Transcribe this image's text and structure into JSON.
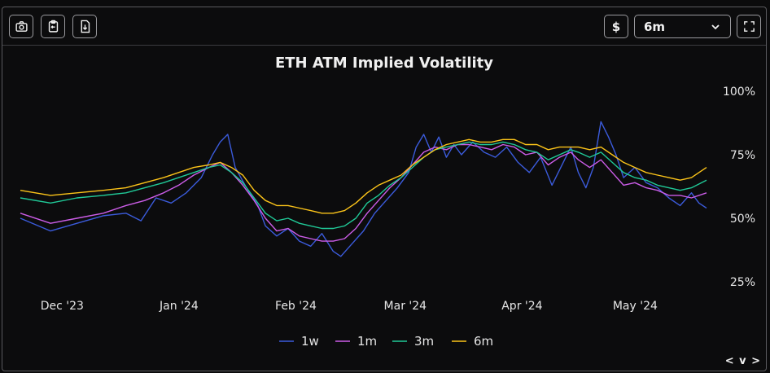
{
  "toolbar": {
    "screenshot_icon": "camera-icon",
    "clipboard_icon": "clipboard-copy-icon",
    "download_icon": "file-download-icon",
    "currency_label": "$",
    "range_value": "6m",
    "fullscreen_icon": "expand-icon"
  },
  "nav_label": "< v >",
  "chart_data": {
    "type": "line",
    "title": "ETH ATM Implied Volatility",
    "xlabel": "",
    "ylabel": "",
    "x_start": "2023-11-21",
    "x_end": "2024-05-21",
    "x_ticks": [
      {
        "label": "Dec '23",
        "date": "2023-12-01"
      },
      {
        "label": "Jan '24",
        "date": "2024-01-01"
      },
      {
        "label": "Feb '24",
        "date": "2024-02-01"
      },
      {
        "label": "Mar '24",
        "date": "2024-03-01"
      },
      {
        "label": "Apr '24",
        "date": "2024-04-01"
      },
      {
        "label": "May '24",
        "date": "2024-05-01"
      }
    ],
    "y_ticks": [
      "25%",
      "50%",
      "75%",
      "100%"
    ],
    "ylim": [
      25,
      100
    ],
    "y_axis_side": "right",
    "legend_placement": "bottom-center",
    "grid": false,
    "series": [
      {
        "name": "1w",
        "color": "#3b5bdb",
        "values": [
          [
            0,
            50
          ],
          [
            8,
            45
          ],
          [
            15,
            48
          ],
          [
            22,
            51
          ],
          [
            28,
            52
          ],
          [
            32,
            49
          ],
          [
            36,
            58
          ],
          [
            40,
            56
          ],
          [
            44,
            60
          ],
          [
            48,
            66
          ],
          [
            51,
            75
          ],
          [
            53,
            80
          ],
          [
            55,
            83
          ],
          [
            57,
            70
          ],
          [
            60,
            62
          ],
          [
            63,
            55
          ],
          [
            65,
            47
          ],
          [
            68,
            43
          ],
          [
            71,
            46
          ],
          [
            74,
            41
          ],
          [
            77,
            39
          ],
          [
            80,
            44
          ],
          [
            83,
            37
          ],
          [
            85,
            35
          ],
          [
            88,
            40
          ],
          [
            91,
            45
          ],
          [
            94,
            52
          ],
          [
            97,
            57
          ],
          [
            100,
            62
          ],
          [
            103,
            68
          ],
          [
            105,
            78
          ],
          [
            107,
            83
          ],
          [
            109,
            76
          ],
          [
            111,
            82
          ],
          [
            113,
            74
          ],
          [
            115,
            79
          ],
          [
            117,
            75
          ],
          [
            120,
            80
          ],
          [
            123,
            76
          ],
          [
            126,
            74
          ],
          [
            129,
            78
          ],
          [
            132,
            72
          ],
          [
            135,
            68
          ],
          [
            138,
            74
          ],
          [
            141,
            63
          ],
          [
            144,
            72
          ],
          [
            146,
            78
          ],
          [
            148,
            68
          ],
          [
            150,
            62
          ],
          [
            152,
            70
          ],
          [
            154,
            88
          ],
          [
            156,
            82
          ],
          [
            158,
            75
          ],
          [
            160,
            66
          ],
          [
            163,
            70
          ],
          [
            166,
            64
          ],
          [
            169,
            62
          ],
          [
            172,
            58
          ],
          [
            175,
            55
          ],
          [
            178,
            60
          ],
          [
            180,
            56
          ],
          [
            182,
            54
          ]
        ]
      },
      {
        "name": "1m",
        "color": "#cc5de8",
        "values": [
          [
            0,
            52
          ],
          [
            8,
            48
          ],
          [
            15,
            50
          ],
          [
            22,
            52
          ],
          [
            28,
            55
          ],
          [
            33,
            57
          ],
          [
            38,
            60
          ],
          [
            42,
            63
          ],
          [
            46,
            67
          ],
          [
            50,
            70
          ],
          [
            53,
            72
          ],
          [
            56,
            68
          ],
          [
            59,
            63
          ],
          [
            62,
            57
          ],
          [
            65,
            50
          ],
          [
            68,
            45
          ],
          [
            71,
            46
          ],
          [
            74,
            43
          ],
          [
            77,
            42
          ],
          [
            80,
            41
          ],
          [
            83,
            41
          ],
          [
            86,
            42
          ],
          [
            89,
            46
          ],
          [
            92,
            52
          ],
          [
            95,
            57
          ],
          [
            98,
            62
          ],
          [
            101,
            66
          ],
          [
            104,
            71
          ],
          [
            107,
            76
          ],
          [
            110,
            78
          ],
          [
            113,
            77
          ],
          [
            116,
            79
          ],
          [
            119,
            79
          ],
          [
            122,
            78
          ],
          [
            125,
            77
          ],
          [
            128,
            79
          ],
          [
            131,
            78
          ],
          [
            134,
            75
          ],
          [
            137,
            76
          ],
          [
            140,
            71
          ],
          [
            143,
            74
          ],
          [
            146,
            76
          ],
          [
            148,
            73
          ],
          [
            151,
            70
          ],
          [
            154,
            73
          ],
          [
            157,
            68
          ],
          [
            160,
            63
          ],
          [
            163,
            64
          ],
          [
            166,
            62
          ],
          [
            169,
            61
          ],
          [
            172,
            59
          ],
          [
            175,
            59
          ],
          [
            178,
            58
          ],
          [
            182,
            60
          ]
        ]
      },
      {
        "name": "3m",
        "color": "#20c997",
        "values": [
          [
            0,
            58
          ],
          [
            8,
            56
          ],
          [
            15,
            58
          ],
          [
            22,
            59
          ],
          [
            28,
            60
          ],
          [
            33,
            62
          ],
          [
            38,
            64
          ],
          [
            42,
            66
          ],
          [
            46,
            68
          ],
          [
            50,
            70
          ],
          [
            53,
            71
          ],
          [
            56,
            68
          ],
          [
            59,
            64
          ],
          [
            62,
            58
          ],
          [
            65,
            52
          ],
          [
            68,
            49
          ],
          [
            71,
            50
          ],
          [
            74,
            48
          ],
          [
            77,
            47
          ],
          [
            80,
            46
          ],
          [
            83,
            46
          ],
          [
            86,
            47
          ],
          [
            89,
            50
          ],
          [
            92,
            56
          ],
          [
            95,
            59
          ],
          [
            98,
            63
          ],
          [
            101,
            66
          ],
          [
            104,
            70
          ],
          [
            107,
            74
          ],
          [
            110,
            77
          ],
          [
            113,
            78
          ],
          [
            116,
            79
          ],
          [
            119,
            80
          ],
          [
            122,
            79
          ],
          [
            125,
            79
          ],
          [
            128,
            80
          ],
          [
            131,
            79
          ],
          [
            134,
            77
          ],
          [
            137,
            76
          ],
          [
            140,
            73
          ],
          [
            143,
            75
          ],
          [
            146,
            77
          ],
          [
            148,
            76
          ],
          [
            151,
            74
          ],
          [
            154,
            76
          ],
          [
            157,
            72
          ],
          [
            160,
            68
          ],
          [
            163,
            66
          ],
          [
            166,
            65
          ],
          [
            169,
            63
          ],
          [
            172,
            62
          ],
          [
            175,
            61
          ],
          [
            178,
            62
          ],
          [
            182,
            65
          ]
        ]
      },
      {
        "name": "6m",
        "color": "#fcc419",
        "values": [
          [
            0,
            61
          ],
          [
            8,
            59
          ],
          [
            15,
            60
          ],
          [
            22,
            61
          ],
          [
            28,
            62
          ],
          [
            33,
            64
          ],
          [
            38,
            66
          ],
          [
            42,
            68
          ],
          [
            46,
            70
          ],
          [
            50,
            71
          ],
          [
            53,
            72
          ],
          [
            56,
            70
          ],
          [
            59,
            67
          ],
          [
            62,
            61
          ],
          [
            65,
            57
          ],
          [
            68,
            55
          ],
          [
            71,
            55
          ],
          [
            74,
            54
          ],
          [
            77,
            53
          ],
          [
            80,
            52
          ],
          [
            83,
            52
          ],
          [
            86,
            53
          ],
          [
            89,
            56
          ],
          [
            92,
            60
          ],
          [
            95,
            63
          ],
          [
            98,
            65
          ],
          [
            101,
            67
          ],
          [
            104,
            71
          ],
          [
            107,
            74
          ],
          [
            110,
            77
          ],
          [
            113,
            79
          ],
          [
            116,
            80
          ],
          [
            119,
            81
          ],
          [
            122,
            80
          ],
          [
            125,
            80
          ],
          [
            128,
            81
          ],
          [
            131,
            81
          ],
          [
            134,
            79
          ],
          [
            137,
            79
          ],
          [
            140,
            77
          ],
          [
            143,
            78
          ],
          [
            146,
            78
          ],
          [
            148,
            78
          ],
          [
            151,
            77
          ],
          [
            154,
            78
          ],
          [
            157,
            75
          ],
          [
            160,
            72
          ],
          [
            163,
            70
          ],
          [
            166,
            68
          ],
          [
            169,
            67
          ],
          [
            172,
            66
          ],
          [
            175,
            65
          ],
          [
            178,
            66
          ],
          [
            182,
            70
          ]
        ]
      }
    ]
  }
}
